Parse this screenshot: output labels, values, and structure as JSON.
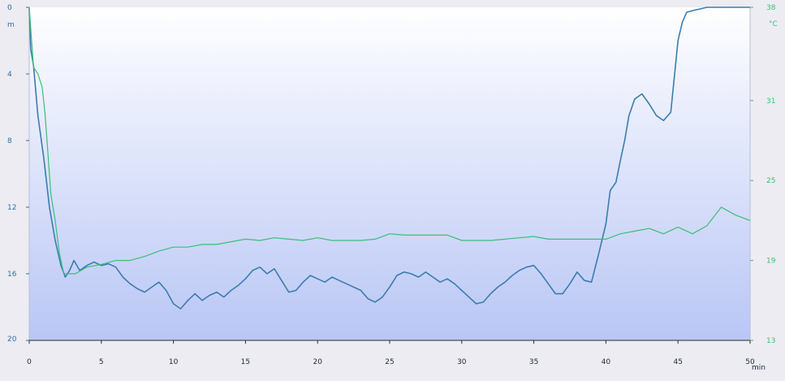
{
  "chart_data": {
    "type": "line",
    "xlabel": "min",
    "xlim": [
      0,
      50
    ],
    "x_ticks": [
      0,
      5,
      10,
      15,
      20,
      25,
      30,
      35,
      40,
      45,
      50
    ],
    "left_axis": {
      "unit": "m",
      "range": [
        0,
        20
      ],
      "inverted": true,
      "ticks": [
        0,
        4,
        8,
        12,
        16,
        20
      ],
      "color": "#2f6fa8"
    },
    "right_axis": {
      "unit": "°C",
      "range": [
        13,
        38
      ],
      "ticks": [
        13,
        19,
        25,
        31,
        38
      ],
      "color": "#3dbd78"
    },
    "grid": false,
    "background_gradient": [
      "#ffffff",
      "#b9c6f5"
    ],
    "series": [
      {
        "axis": "left",
        "color": "#3a7db0",
        "x": [
          0,
          0.1,
          0.3,
          0.6,
          1.0,
          1.4,
          1.8,
          2.2,
          2.5,
          2.8,
          3.1,
          3.5,
          4.0,
          4.5,
          5.0,
          5.5,
          6.0,
          6.5,
          7.0,
          7.5,
          8.0,
          8.5,
          9.0,
          9.5,
          10.0,
          10.5,
          11.0,
          11.5,
          12.0,
          12.5,
          13.0,
          13.5,
          14.0,
          14.5,
          15.0,
          15.5,
          16.0,
          16.5,
          17.0,
          17.5,
          18.0,
          18.5,
          19.0,
          19.5,
          20.0,
          20.5,
          21.0,
          21.5,
          22.0,
          22.5,
          23.0,
          23.5,
          24.0,
          24.5,
          25.0,
          25.5,
          26.0,
          26.5,
          27.0,
          27.5,
          28.0,
          28.5,
          29.0,
          29.5,
          30.0,
          30.5,
          31.0,
          31.5,
          32.0,
          32.5,
          33.0,
          33.5,
          34.0,
          34.5,
          35.0,
          35.5,
          36.0,
          36.5,
          37.0,
          37.5,
          38.0,
          38.5,
          39.0,
          39.5,
          40.0,
          40.3,
          40.7,
          41.0,
          41.3,
          41.6,
          42.0,
          42.5,
          43.0,
          43.5,
          44.0,
          44.5,
          45.0,
          45.3,
          45.6,
          46.0,
          46.5,
          47.0,
          48.0,
          49.0,
          50.0
        ],
        "y": [
          0,
          2.5,
          3.5,
          6.5,
          9.0,
          12.0,
          14.0,
          15.5,
          16.2,
          15.8,
          15.2,
          15.8,
          15.5,
          15.3,
          15.5,
          15.4,
          15.6,
          16.2,
          16.6,
          16.9,
          17.1,
          16.8,
          16.5,
          17.0,
          17.8,
          18.1,
          17.6,
          17.2,
          17.6,
          17.3,
          17.1,
          17.4,
          17.0,
          16.7,
          16.3,
          15.8,
          15.6,
          16.0,
          15.7,
          16.4,
          17.1,
          17.0,
          16.5,
          16.1,
          16.3,
          16.5,
          16.2,
          16.4,
          16.6,
          16.8,
          17.0,
          17.5,
          17.7,
          17.4,
          16.8,
          16.1,
          15.9,
          16.0,
          16.2,
          15.9,
          16.2,
          16.5,
          16.3,
          16.6,
          17.0,
          17.4,
          17.8,
          17.7,
          17.2,
          16.8,
          16.5,
          16.1,
          15.8,
          15.6,
          15.5,
          16.0,
          16.6,
          17.2,
          17.2,
          16.6,
          15.9,
          16.4,
          16.5,
          14.8,
          13.0,
          11.0,
          10.5,
          9.2,
          8.0,
          6.5,
          5.5,
          5.2,
          5.8,
          6.5,
          6.8,
          6.3,
          2.0,
          0.9,
          0.3,
          0.2,
          0.1,
          0,
          0,
          0,
          0
        ]
      },
      {
        "axis": "right",
        "color": "#3dbd78",
        "x": [
          0,
          0.3,
          0.6,
          0.9,
          1.1,
          1.3,
          1.5,
          1.8,
          2.1,
          2.4,
          2.8,
          3.2,
          4.0,
          5.0,
          6.0,
          7.0,
          8.0,
          9.0,
          10.0,
          11.0,
          12.0,
          13.0,
          14.0,
          15.0,
          16.0,
          17.0,
          18.0,
          19.0,
          20.0,
          21.0,
          22.0,
          23.0,
          24.0,
          25.0,
          26.0,
          27.0,
          28.0,
          29.0,
          30.0,
          31.0,
          32.0,
          33.0,
          34.0,
          35.0,
          36.0,
          37.0,
          38.0,
          39.0,
          40.0,
          41.0,
          42.0,
          43.0,
          44.0,
          45.0,
          46.0,
          47.0,
          48.0,
          49.0,
          50.0
        ],
        "y": [
          38.0,
          33.5,
          33.0,
          32.0,
          30.0,
          27.0,
          24.0,
          22.0,
          19.5,
          18.0,
          18.0,
          18.0,
          18.5,
          18.7,
          19.0,
          19.0,
          19.3,
          19.7,
          20.0,
          20.0,
          20.2,
          20.2,
          20.4,
          20.6,
          20.5,
          20.7,
          20.6,
          20.5,
          20.7,
          20.5,
          20.5,
          20.5,
          20.6,
          21.0,
          20.9,
          20.9,
          20.9,
          20.9,
          20.5,
          20.5,
          20.5,
          20.6,
          20.7,
          20.8,
          20.6,
          20.6,
          20.6,
          20.6,
          20.6,
          21.0,
          21.2,
          21.4,
          21.0,
          21.5,
          21.0,
          21.6,
          23.0,
          22.4,
          22.0
        ]
      }
    ]
  }
}
